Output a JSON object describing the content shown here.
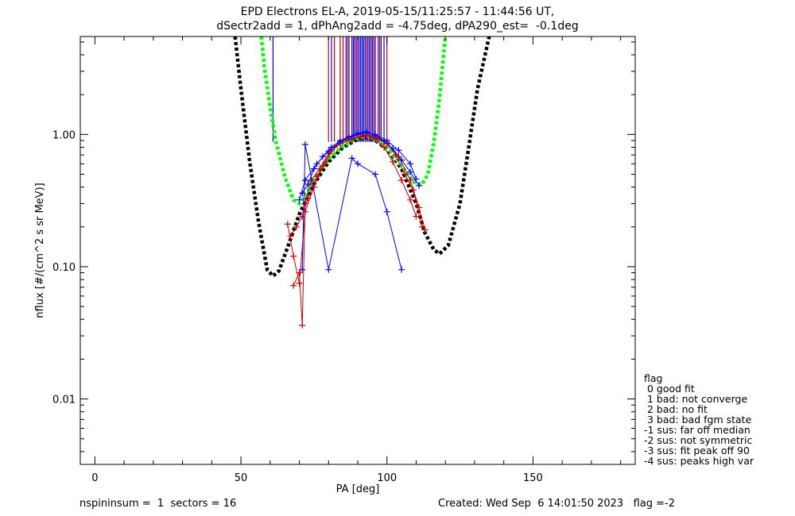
{
  "title_line1": "EPD Electrons EL-A, 2019-05-15/11:25:57 - 11:44:56 UT,",
  "title_line2": "dSectr2add = 1, dPhAng2add = -4.75deg, dPA290_est=  -0.1deg",
  "footer_left": "nspininsum =  1  sectors = 16",
  "footer_right": "Created: Wed Sep  6 14:01:50 2023   flag =-2",
  "legend": {
    "title": "flag",
    "entries": [
      " 0 good fit",
      " 1 bad: not converge",
      " 2 bad: no fit",
      " 3 bad: bad fgm state",
      "-1 sus: far off median",
      "-2 sus: not symmetric",
      "-3 sus: fit peak off 90",
      "-4 sus: peaks high var"
    ]
  },
  "colors": {
    "axis": "#000000",
    "fit_black": "#000000",
    "fit_green": "#00ff00",
    "data_red": "#cc0000",
    "data_blue": "#0000ff"
  },
  "chart_data": {
    "type": "line",
    "xlabel": "PA [deg]",
    "ylabel": "nflux [#/(cm^2 s sr MeV)]",
    "xlim": [
      -5,
      185
    ],
    "ylim": [
      0.0032,
      5.5
    ],
    "yscale": "log",
    "xticks": [
      0,
      50,
      100,
      150
    ],
    "xtick_labels": [
      "0",
      "50",
      "100",
      "150"
    ],
    "yticks": [
      0.01,
      0.1,
      1.0
    ],
    "ytick_labels": [
      "0.01",
      "0.10",
      "1.00"
    ],
    "series": [
      {
        "style": "dashed-thick",
        "color": "#000000",
        "x": [
          48,
          50,
          53,
          56,
          59,
          61,
          63,
          66,
          70,
          75,
          80,
          85,
          90,
          93,
          96,
          100,
          105,
          110,
          113,
          116,
          118,
          121,
          125,
          128,
          131,
          135
        ],
        "y": [
          5.5,
          2.2,
          0.62,
          0.22,
          0.095,
          0.085,
          0.093,
          0.14,
          0.25,
          0.42,
          0.62,
          0.8,
          0.92,
          0.95,
          0.9,
          0.78,
          0.55,
          0.3,
          0.18,
          0.135,
          0.125,
          0.145,
          0.3,
          0.8,
          2.2,
          5.5
        ]
      },
      {
        "style": "dashed-thick",
        "color": "#00ff00",
        "x": [
          57,
          58,
          60,
          62,
          65,
          68,
          70,
          72,
          75,
          80,
          85,
          90,
          93,
          96,
          100,
          105,
          108,
          110,
          112,
          114,
          116,
          118,
          120
        ],
        "y": [
          5.5,
          3.3,
          1.6,
          0.88,
          0.48,
          0.32,
          0.3,
          0.34,
          0.46,
          0.65,
          0.82,
          0.94,
          0.97,
          0.92,
          0.8,
          0.58,
          0.47,
          0.42,
          0.42,
          0.5,
          0.85,
          1.9,
          5.5
        ]
      },
      {
        "style": "line-plus",
        "color": "#cc0000",
        "x": [
          67,
          69,
          71,
          73,
          76,
          79,
          82,
          85,
          88,
          91,
          94,
          97,
          100,
          103,
          106,
          109,
          112
        ],
        "y": [
          0.17,
          0.2,
          0.24,
          0.33,
          0.48,
          0.62,
          0.8,
          0.9,
          0.93,
          0.96,
          0.98,
          0.93,
          0.86,
          0.7,
          0.5,
          0.38,
          0.2
        ]
      },
      {
        "style": "line-plus",
        "color": "#cc0000",
        "x": [
          68,
          70,
          71,
          72,
          74,
          77,
          80,
          84,
          88,
          92,
          96,
          100,
          104,
          108,
          111,
          113
        ],
        "y": [
          0.072,
          0.09,
          0.036,
          0.3,
          0.45,
          0.55,
          0.72,
          0.85,
          0.92,
          0.98,
          0.95,
          0.85,
          0.68,
          0.45,
          0.28,
          0.19
        ]
      },
      {
        "style": "line-plus",
        "color": "#cc0000",
        "x": [
          66,
          68,
          70,
          72,
          75,
          78,
          81,
          84,
          87,
          90,
          93,
          96,
          99,
          102,
          105,
          108,
          110
        ],
        "y": [
          0.21,
          0.12,
          0.075,
          0.26,
          0.4,
          0.58,
          0.75,
          0.88,
          0.95,
          1.0,
          0.99,
          0.92,
          0.8,
          0.62,
          0.45,
          0.32,
          0.24
        ]
      },
      {
        "style": "line-plus",
        "color": "#0000ff",
        "x": [
          71,
          73,
          75,
          78,
          81,
          84,
          87,
          90,
          93,
          96,
          99,
          102,
          105,
          108,
          111
        ],
        "y": [
          0.36,
          0.42,
          0.55,
          0.68,
          0.8,
          0.9,
          0.96,
          1.02,
          1.05,
          0.98,
          0.9,
          0.78,
          0.64,
          0.52,
          0.41
        ]
      },
      {
        "style": "line-plus",
        "color": "#0000ff",
        "x": [
          71,
          72,
          80,
          88,
          90,
          96,
          100,
          105
        ],
        "y": [
          0.095,
          0.84,
          0.095,
          0.66,
          0.6,
          0.5,
          0.26,
          0.095
        ]
      },
      {
        "style": "line-plus",
        "color": "#0000ff",
        "x": [
          70,
          72,
          76,
          80,
          84,
          88,
          92,
          96,
          100,
          104,
          108,
          110
        ],
        "y": [
          0.32,
          0.45,
          0.6,
          0.75,
          0.88,
          0.97,
          1.03,
          1.0,
          0.9,
          0.76,
          0.6,
          0.46
        ]
      }
    ],
    "vertical_lines": [
      {
        "color": "#0000ff",
        "x": [
          61,
          81,
          86,
          87,
          88,
          88.5,
          89,
          89.5,
          90,
          90.5,
          91,
          91.5,
          92,
          92.5,
          93,
          93.5,
          94,
          94.5,
          95,
          95.5,
          96,
          97,
          98,
          99
        ]
      },
      {
        "color": "#cc0000",
        "x": [
          80,
          82,
          84,
          85,
          86.5,
          89,
          90,
          93,
          94.5,
          96,
          97.5,
          100
        ]
      }
    ]
  }
}
